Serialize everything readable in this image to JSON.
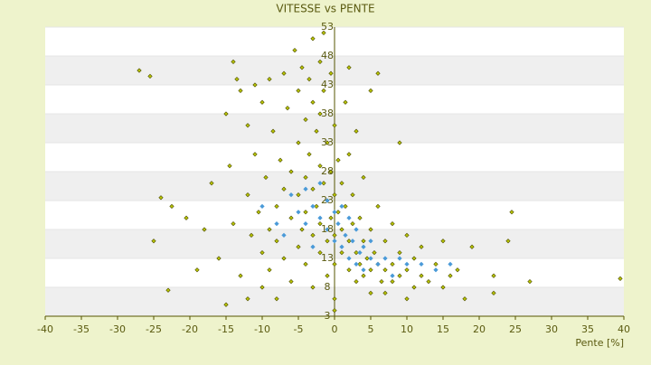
{
  "chart_data": {
    "type": "scatter",
    "title": "VITESSE vs PENTE",
    "x_label": "Pente [%]",
    "xlim": [
      -40,
      40
    ],
    "xticks": [
      -40,
      -35,
      -30,
      -25,
      -20,
      -15,
      -10,
      -5,
      0,
      5,
      10,
      15,
      20,
      25,
      30,
      35,
      40
    ],
    "ylim": [
      3,
      53
    ],
    "yticks": [
      3,
      8,
      13,
      18,
      23,
      28,
      33,
      38,
      43,
      48,
      53
    ],
    "grid": true,
    "series": [
      {
        "color": "#b8c400",
        "x": [
          -27,
          -25.5,
          -24,
          -22.5,
          -25,
          -23,
          -19,
          -20.5,
          -18,
          -17,
          -16,
          -15,
          -15,
          -14.5,
          -14,
          -14,
          -13.5,
          -13,
          -13,
          -12,
          -12,
          -12,
          -11.5,
          -11,
          -11,
          -10.5,
          -10,
          -10,
          -10,
          -9.5,
          -9,
          -9,
          -9,
          -8.5,
          -8,
          -8,
          -8,
          -7.5,
          -7,
          -7,
          -7,
          -6.5,
          -6,
          -6,
          -6,
          -5.5,
          -5,
          -5,
          -5,
          -5,
          -4.5,
          -4.5,
          -4,
          -4,
          -4,
          -4,
          -3.5,
          -3.5,
          -3,
          -3,
          -3,
          -3,
          -3,
          -2.5,
          -2.5,
          -2,
          -2,
          -2,
          -2,
          -2,
          -1.5,
          -1.5,
          -1.5,
          -1,
          -1,
          -1,
          -1,
          -0.5,
          -0.5,
          -0.5,
          0,
          0,
          0,
          0,
          0,
          0,
          0.5,
          0.5,
          1,
          1,
          1,
          1.5,
          1.5,
          2,
          2,
          2,
          2,
          2.5,
          2.5,
          3,
          3,
          3,
          3.5,
          3.5,
          4,
          4,
          4,
          4.5,
          5,
          5,
          5,
          5,
          5.5,
          6,
          6,
          6,
          6.5,
          7,
          7,
          7,
          8,
          8,
          8,
          9,
          9,
          9,
          10,
          10,
          10,
          11,
          11,
          12,
          12,
          13,
          14,
          15,
          15,
          16,
          17,
          18,
          19,
          22,
          22,
          24,
          24.5,
          27,
          39.5
        ],
        "values": [
          45.5,
          44.5,
          23.5,
          22,
          16,
          7.5,
          11,
          20,
          18,
          26,
          13,
          38,
          5,
          29,
          47,
          19,
          44,
          42,
          10,
          36,
          24,
          6,
          17,
          43,
          31,
          21,
          40,
          14,
          8,
          27,
          44,
          18,
          11,
          35,
          22,
          16,
          6,
          30,
          45,
          25,
          13,
          39,
          28,
          20,
          9,
          49,
          42,
          33,
          24,
          15,
          46,
          18,
          37,
          27,
          21,
          12,
          44,
          31,
          51,
          40,
          25,
          17,
          8,
          35,
          22,
          47,
          38,
          29,
          19,
          14,
          52,
          42,
          26,
          33,
          23,
          16,
          10,
          45,
          28,
          20,
          36,
          24,
          17,
          12,
          6,
          4,
          30,
          21,
          26,
          18,
          14,
          40,
          22,
          46,
          31,
          16,
          11,
          24,
          19,
          35,
          14,
          9,
          20,
          12,
          27,
          16,
          10,
          13,
          42,
          18,
          11,
          7,
          14,
          45,
          22,
          12,
          9,
          16,
          11,
          7,
          19,
          12,
          9,
          33,
          14,
          10,
          17,
          11,
          6,
          13,
          8,
          15,
          10,
          9,
          12,
          16,
          8,
          10,
          11,
          6,
          15,
          10,
          7,
          16,
          21,
          9,
          9.5
        ]
      },
      {
        "color": "#4a9ad8",
        "x": [
          -10,
          -8,
          -7,
          -6,
          -5,
          -4,
          -4,
          -3,
          -3,
          -2,
          -2,
          -1,
          -1,
          0,
          0,
          0.5,
          1,
          1,
          1.5,
          2,
          2,
          2.5,
          3,
          3,
          3.5,
          4,
          4,
          5,
          5,
          6,
          7,
          8,
          9,
          10,
          12,
          14,
          16
        ],
        "values": [
          22,
          19,
          17,
          24,
          21,
          19,
          25,
          22,
          15,
          20,
          26,
          18,
          23,
          21,
          16,
          19,
          22,
          15,
          17,
          20,
          13,
          16,
          18,
          12,
          14,
          15,
          11,
          13,
          16,
          12,
          13,
          10,
          13,
          12,
          12,
          11,
          12
        ]
      }
    ]
  }
}
